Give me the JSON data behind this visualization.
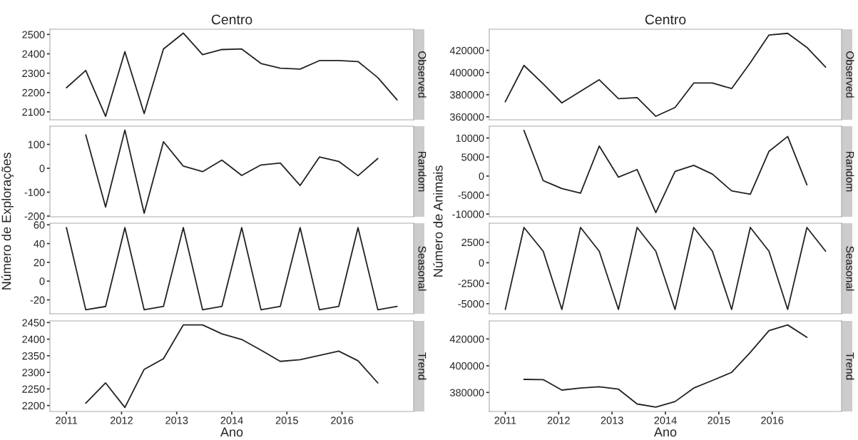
{
  "chart_data": [
    {
      "type": "line",
      "title": "Centro",
      "y2label": "Observed",
      "color": "#222222",
      "x": [
        2011,
        2011.35,
        2011.71,
        2012.06,
        2012.41,
        2012.76,
        2013.12,
        2013.47,
        2013.82,
        2014.18,
        2014.53,
        2014.88,
        2015.24,
        2015.59,
        2015.94,
        2016.29,
        2016.65,
        2017
      ],
      "values": [
        2225,
        2314,
        2077,
        2411,
        2091,
        2425,
        2507,
        2396,
        2422,
        2425,
        2350,
        2326,
        2321,
        2365,
        2365,
        2360,
        2277,
        2162
      ],
      "xlim": [
        2010.7,
        2017.3
      ],
      "ylim": [
        2059,
        2527
      ],
      "yticks": [
        2100,
        2200,
        2300,
        2400,
        2500
      ],
      "tick_labels": "y"
    },
    {
      "type": "line",
      "y2label": "Random",
      "ylabel": "Número de Explorações",
      "color": "#222222",
      "x": [
        2011.35,
        2011.71,
        2012.06,
        2012.41,
        2012.76,
        2013.12,
        2013.47,
        2013.82,
        2014.18,
        2014.53,
        2014.88,
        2015.24,
        2015.59,
        2015.94,
        2016.29,
        2016.65
      ],
      "values": [
        140,
        -162,
        160,
        -188,
        111,
        9,
        -14,
        34,
        -30,
        14,
        22,
        -72,
        47,
        29,
        -31,
        41
      ],
      "xlim": [
        2010.7,
        2017.3
      ],
      "ylim": [
        -203,
        176
      ],
      "yticks": [
        -200,
        -100,
        0,
        100
      ],
      "tick_labels": "y"
    },
    {
      "type": "line",
      "y2label": "Seasonal",
      "color": "#222222",
      "x": [
        2011,
        2011.35,
        2011.71,
        2012.06,
        2012.41,
        2012.76,
        2013.12,
        2013.47,
        2013.82,
        2014.18,
        2014.53,
        2014.88,
        2015.24,
        2015.59,
        2015.94,
        2016.29,
        2016.65,
        2017
      ],
      "values": [
        57,
        -30.5,
        -27,
        57,
        -30.5,
        -27,
        57,
        -30.5,
        -27,
        57,
        -30.5,
        -27,
        57,
        -30.5,
        -27,
        57,
        -30.5,
        -27
      ],
      "xlim": [
        2010.7,
        2017.3
      ],
      "ylim": [
        -34.8,
        61.7
      ],
      "yticks": [
        -20,
        0,
        20,
        40,
        60
      ],
      "tick_labels": "y"
    },
    {
      "type": "line",
      "y2label": "Trend",
      "xlabel": "Ano",
      "color": "#222222",
      "x": [
        2011.35,
        2011.71,
        2012.06,
        2012.41,
        2012.76,
        2013.12,
        2013.47,
        2013.82,
        2014.18,
        2014.53,
        2014.88,
        2015.24,
        2015.59,
        2015.94,
        2016.29,
        2016.65
      ],
      "values": [
        2207,
        2268,
        2194,
        2309,
        2341,
        2443,
        2443,
        2416,
        2399,
        2367,
        2333,
        2338,
        2351,
        2364,
        2335,
        2268
      ],
      "xlim": [
        2010.7,
        2017.3
      ],
      "ylim": [
        2182,
        2455
      ],
      "yticks": [
        2200,
        2250,
        2300,
        2350,
        2400,
        2450
      ],
      "xticks": [
        2011,
        2012,
        2013,
        2014,
        2015,
        2016
      ]
    },
    {
      "type": "line",
      "title": "Centro",
      "y2label": "Observed",
      "color": "#222222",
      "x": [
        2011,
        2011.35,
        2011.71,
        2012.06,
        2012.41,
        2012.76,
        2013.12,
        2013.47,
        2013.82,
        2014.18,
        2014.53,
        2014.88,
        2015.24,
        2015.59,
        2015.94,
        2016.29,
        2016.65,
        2017
      ],
      "values": [
        373600,
        406400,
        389800,
        372600,
        383000,
        393500,
        376400,
        377400,
        360500,
        368400,
        390500,
        390500,
        385500,
        408800,
        433900,
        435400,
        422700,
        404900
      ],
      "xlim": [
        2010.7,
        2017.3
      ],
      "ylim": [
        357300,
        439100
      ],
      "yticks": [
        360000,
        380000,
        400000,
        420000
      ],
      "tick_labels": "y"
    },
    {
      "type": "line",
      "y2label": "Random",
      "ylabel": "Número de Animais",
      "color": "#222222",
      "x": [
        2011.35,
        2011.71,
        2012.06,
        2012.41,
        2012.76,
        2013.12,
        2013.47,
        2013.82,
        2014.18,
        2014.53,
        2014.88,
        2015.24,
        2015.59,
        2015.94,
        2016.29,
        2016.65
      ],
      "values": [
        12000,
        -1200,
        -3300,
        -4500,
        7900,
        -300,
        1700,
        -9600,
        1200,
        2800,
        500,
        -3900,
        -4800,
        6500,
        10400,
        -2300
      ],
      "xlim": [
        2010.7,
        2017.3
      ],
      "ylim": [
        -10720,
        13100
      ],
      "yticks": [
        -10000,
        -5000,
        0,
        5000,
        10000
      ],
      "tick_labels": "y"
    },
    {
      "type": "line",
      "y2label": "Seasonal",
      "color": "#222222",
      "x": [
        2011,
        2011.35,
        2011.71,
        2012.06,
        2012.41,
        2012.76,
        2013.12,
        2013.47,
        2013.82,
        2014.18,
        2014.53,
        2014.88,
        2015.24,
        2015.59,
        2015.94,
        2016.29,
        2016.65,
        2017
      ],
      "values": [
        -5700,
        4300,
        1400,
        -5700,
        4300,
        1400,
        -5700,
        4300,
        1400,
        -5700,
        4300,
        1400,
        -5700,
        4300,
        1400,
        -5700,
        4300,
        1400
      ],
      "xlim": [
        2010.7,
        2017.3
      ],
      "ylim": [
        -6230,
        4820
      ],
      "yticks": [
        -5000,
        -2500,
        0,
        2500
      ],
      "tick_labels": "y"
    },
    {
      "type": "line",
      "y2label": "Trend",
      "xlabel": "Ano",
      "color": "#222222",
      "x": [
        2011.35,
        2011.71,
        2012.06,
        2012.41,
        2012.76,
        2013.12,
        2013.47,
        2013.82,
        2014.18,
        2014.53,
        2014.88,
        2015.24,
        2015.59,
        2015.94,
        2016.29,
        2016.65
      ],
      "values": [
        389800,
        389600,
        381800,
        383300,
        384300,
        382500,
        371400,
        369100,
        373200,
        383300,
        389000,
        395000,
        410000,
        426200,
        430500,
        421200
      ],
      "xlim": [
        2010.7,
        2017.3
      ],
      "ylim": [
        365800,
        433500
      ],
      "yticks": [
        380000,
        400000,
        420000
      ],
      "xticks": [
        2011,
        2012,
        2013,
        2014,
        2015,
        2016
      ]
    }
  ]
}
